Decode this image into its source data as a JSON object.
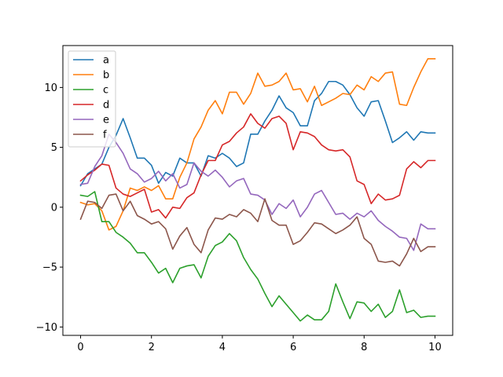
{
  "chart_data": {
    "type": "line",
    "title": "",
    "xlabel": "",
    "ylabel": "",
    "xlim": [
      -0.5,
      10.5
    ],
    "ylim": [
      -10.7,
      13.5
    ],
    "xticks": [
      0,
      2,
      4,
      6,
      8,
      10
    ],
    "yticks": [
      -10,
      -5,
      0,
      5,
      10
    ],
    "grid": false,
    "legend_position": "top-left",
    "x": [
      0.0,
      0.2,
      0.4,
      0.6,
      0.8,
      1.0,
      1.2,
      1.4,
      1.6,
      1.8,
      2.0,
      2.2,
      2.4,
      2.6,
      2.8,
      3.0,
      3.2,
      3.4,
      3.6,
      3.8,
      4.0,
      4.2,
      4.4,
      4.6,
      4.8,
      5.0,
      5.2,
      5.4,
      5.6,
      5.8,
      6.0,
      6.2,
      6.4,
      6.6,
      6.8,
      7.0,
      7.2,
      7.4,
      7.6,
      7.8,
      8.0,
      8.2,
      8.4,
      8.6,
      8.8,
      9.0,
      9.2,
      9.4,
      9.6,
      9.8,
      10.0
    ],
    "series": [
      {
        "name": "a",
        "color": "#1f77b4",
        "values": [
          1.8,
          2.8,
          3.2,
          3.6,
          5.0,
          6.0,
          7.4,
          5.8,
          4.1,
          4.1,
          3.5,
          2.0,
          2.9,
          2.6,
          4.1,
          3.7,
          3.7,
          2.6,
          4.3,
          4.1,
          4.5,
          4.1,
          3.4,
          3.7,
          6.1,
          6.1,
          7.2,
          8.1,
          9.3,
          8.3,
          7.9,
          6.8,
          6.8,
          8.9,
          9.5,
          10.5,
          10.5,
          10.2,
          9.4,
          8.3,
          7.6,
          8.8,
          8.9,
          7.2,
          5.4,
          5.8,
          6.3,
          5.6,
          6.3,
          6.2,
          6.2
        ]
      },
      {
        "name": "b",
        "color": "#ff7f0e",
        "values": [
          0.4,
          0.2,
          0.3,
          -0.3,
          -1.9,
          -1.6,
          -0.3,
          1.6,
          1.4,
          1.7,
          1.4,
          1.8,
          0.7,
          0.7,
          2.5,
          3.7,
          5.7,
          6.7,
          8.1,
          8.9,
          7.8,
          9.6,
          9.6,
          8.6,
          9.5,
          11.2,
          10.1,
          10.2,
          10.5,
          11.2,
          9.8,
          9.9,
          8.8,
          10.1,
          8.5,
          8.8,
          9.1,
          9.5,
          9.4,
          10.2,
          9.8,
          10.9,
          10.5,
          11.2,
          11.3,
          8.6,
          8.5,
          10.0,
          11.3,
          12.4,
          12.4
        ]
      },
      {
        "name": "c",
        "color": "#2ca02c",
        "values": [
          1.0,
          0.9,
          1.3,
          -1.2,
          -1.2,
          -2.1,
          -2.5,
          -3.0,
          -3.8,
          -3.8,
          -4.6,
          -5.5,
          -5.1,
          -6.3,
          -5.1,
          -4.9,
          -4.8,
          -5.9,
          -4.1,
          -3.2,
          -2.9,
          -2.2,
          -2.8,
          -4.2,
          -5.2,
          -6.0,
          -7.2,
          -8.3,
          -7.4,
          -8.1,
          -8.8,
          -9.5,
          -9.0,
          -9.4,
          -9.4,
          -8.7,
          -6.4,
          -7.9,
          -9.3,
          -7.9,
          -8.0,
          -8.7,
          -8.1,
          -9.2,
          -8.7,
          -6.9,
          -8.8,
          -8.6,
          -9.2,
          -9.1,
          -9.1
        ]
      },
      {
        "name": "d",
        "color": "#d62728",
        "values": [
          2.2,
          2.7,
          3.1,
          3.6,
          3.5,
          1.6,
          1.1,
          0.9,
          1.2,
          1.5,
          -0.4,
          -0.2,
          -0.9,
          0.0,
          -0.1,
          0.8,
          1.2,
          2.7,
          3.9,
          3.9,
          5.2,
          5.5,
          6.2,
          6.7,
          7.8,
          7.0,
          6.6,
          7.4,
          7.6,
          7.0,
          4.8,
          6.3,
          6.2,
          5.9,
          5.2,
          4.8,
          4.7,
          4.8,
          4.2,
          2.2,
          1.9,
          0.3,
          1.1,
          0.6,
          0.7,
          1.0,
          3.2,
          3.8,
          3.3,
          3.9,
          3.9
        ]
      },
      {
        "name": "e",
        "color": "#9467bd",
        "values": [
          1.9,
          2.0,
          3.4,
          4.3,
          6.1,
          5.4,
          4.5,
          3.2,
          2.8,
          2.1,
          2.4,
          3.0,
          2.2,
          2.8,
          1.6,
          1.9,
          3.7,
          3.0,
          2.6,
          3.1,
          2.5,
          1.7,
          2.2,
          2.4,
          1.1,
          1.0,
          0.6,
          -0.6,
          0.3,
          -0.1,
          0.6,
          -0.8,
          0.0,
          1.1,
          1.4,
          0.4,
          -0.6,
          -0.5,
          -1.0,
          -0.5,
          -0.8,
          -0.3,
          -1.1,
          -1.6,
          -2.0,
          -2.5,
          -2.6,
          -3.6,
          -1.4,
          -1.8,
          -1.8
        ]
      },
      {
        "name": "f",
        "color": "#8c564b",
        "values": [
          -1.0,
          0.5,
          0.4,
          -0.1,
          1.0,
          1.1,
          -0.3,
          0.5,
          -0.7,
          -1.0,
          -1.4,
          -1.2,
          -1.8,
          -3.5,
          -2.4,
          -1.7,
          -3.1,
          -3.8,
          -1.9,
          -0.9,
          -1.0,
          -0.6,
          -0.8,
          -0.2,
          -0.5,
          -1.2,
          0.7,
          -1.1,
          -1.5,
          -1.5,
          -3.1,
          -2.8,
          -2.1,
          -1.3,
          -1.4,
          -1.8,
          -2.2,
          -1.9,
          -1.5,
          -0.8,
          -2.6,
          -3.1,
          -4.5,
          -4.6,
          -4.5,
          -4.9,
          -3.9,
          -2.6,
          -3.7,
          -3.3,
          -3.3
        ]
      }
    ]
  }
}
